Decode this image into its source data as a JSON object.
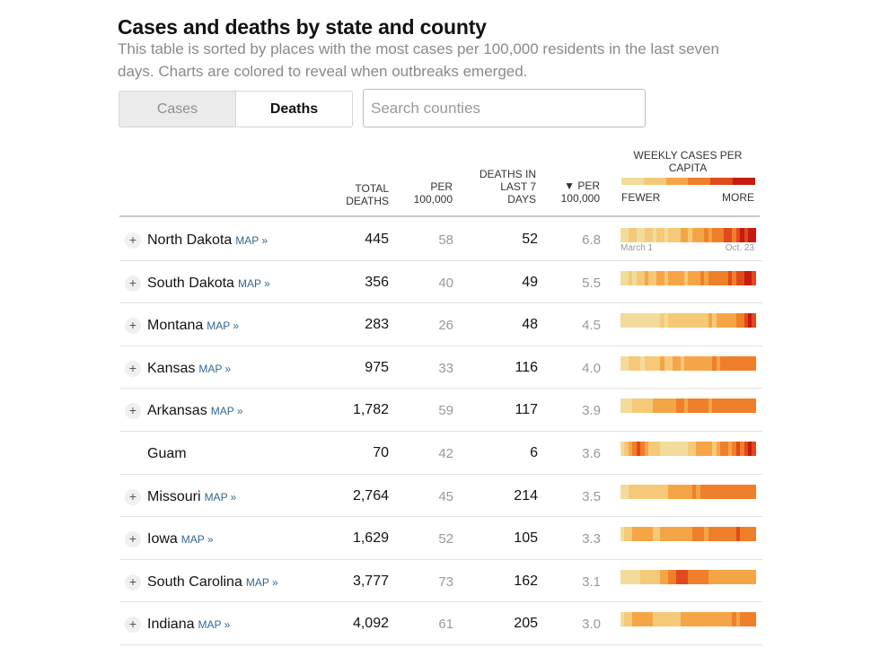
{
  "title": "Cases and deaths by state and county",
  "subtitle": "This table is sorted by places with the most cases per 100,000 residents in the last seven days. Charts are colored to reveal when outbreaks emerged.",
  "toggle": {
    "cases_label": "Cases",
    "deaths_label": "Deaths",
    "selected": "Deaths"
  },
  "search": {
    "placeholder": "Search counties"
  },
  "columns": {
    "total": "Total deaths",
    "per": "Per 100,000",
    "deaths7": "Deaths in last 7 days",
    "per7": "▼ Per 100,000",
    "weekly": "Weekly cases per capita"
  },
  "legend": {
    "fewer": "Fewer",
    "more": "More",
    "colors": [
      "#f2dc9a",
      "#f5c977",
      "#f6a546",
      "#f07f2a",
      "#e04a1c",
      "#c51b10"
    ]
  },
  "axis": {
    "start": "March 1",
    "end": "Oct. 23"
  },
  "map_label": "MAP »",
  "rows": [
    {
      "name": "North Dakota",
      "has_map": true,
      "total": "445",
      "per": "58",
      "d7": "52",
      "p7": "6.8",
      "levels": [
        0,
        0,
        1,
        1,
        0,
        0,
        1,
        1,
        0,
        1,
        1,
        0,
        1,
        1,
        1,
        2,
        2,
        1,
        2,
        2,
        2,
        3,
        2,
        3,
        3,
        3,
        4,
        4,
        3,
        4,
        5,
        4,
        5,
        5
      ]
    },
    {
      "name": "South Dakota",
      "has_map": true,
      "total": "356",
      "per": "40",
      "d7": "49",
      "p7": "5.5",
      "levels": [
        0,
        0,
        1,
        0,
        1,
        1,
        2,
        1,
        1,
        2,
        2,
        1,
        2,
        2,
        2,
        2,
        1,
        2,
        2,
        2,
        3,
        2,
        3,
        3,
        3,
        3,
        3,
        4,
        3,
        4,
        4,
        5,
        5,
        4
      ]
    },
    {
      "name": "Montana",
      "has_map": true,
      "total": "283",
      "per": "26",
      "d7": "48",
      "p7": "4.5",
      "levels": [
        0,
        0,
        0,
        0,
        0,
        0,
        0,
        0,
        0,
        0,
        1,
        0,
        1,
        1,
        1,
        1,
        1,
        1,
        1,
        1,
        1,
        1,
        2,
        1,
        2,
        2,
        2,
        2,
        2,
        3,
        3,
        4,
        5,
        4
      ]
    },
    {
      "name": "Kansas",
      "has_map": true,
      "total": "975",
      "per": "33",
      "d7": "116",
      "p7": "4.0",
      "levels": [
        0,
        0,
        1,
        1,
        1,
        0,
        1,
        1,
        1,
        1,
        2,
        1,
        1,
        2,
        2,
        1,
        2,
        2,
        2,
        2,
        2,
        2,
        2,
        3,
        2,
        3,
        3,
        3,
        3,
        3,
        3,
        3,
        3,
        3
      ]
    },
    {
      "name": "Arkansas",
      "has_map": true,
      "total": "1,782",
      "per": "59",
      "d7": "117",
      "p7": "3.9",
      "levels": [
        0,
        0,
        0,
        1,
        1,
        1,
        1,
        1,
        2,
        2,
        2,
        2,
        2,
        2,
        3,
        3,
        2,
        3,
        3,
        3,
        3,
        3,
        2,
        3,
        3,
        3,
        3,
        3,
        3,
        3,
        3,
        3,
        3,
        3
      ]
    },
    {
      "name": "Guam",
      "has_map": false,
      "total": "70",
      "per": "42",
      "d7": "6",
      "p7": "3.6",
      "levels": [
        0,
        1,
        2,
        3,
        4,
        3,
        2,
        1,
        1,
        1,
        0,
        0,
        0,
        0,
        0,
        0,
        0,
        1,
        1,
        2,
        2,
        2,
        2,
        1,
        2,
        3,
        3,
        2,
        3,
        4,
        3,
        4,
        5,
        4
      ]
    },
    {
      "name": "Missouri",
      "has_map": true,
      "total": "2,764",
      "per": "45",
      "d7": "214",
      "p7": "3.5",
      "levels": [
        0,
        0,
        1,
        1,
        1,
        1,
        1,
        1,
        1,
        1,
        1,
        1,
        2,
        2,
        2,
        2,
        2,
        2,
        3,
        2,
        3,
        3,
        3,
        3,
        3,
        3,
        3,
        3,
        3,
        3,
        3,
        3,
        3,
        3
      ]
    },
    {
      "name": "Iowa",
      "has_map": true,
      "total": "1,629",
      "per": "52",
      "d7": "105",
      "p7": "3.3",
      "levels": [
        0,
        1,
        1,
        2,
        2,
        2,
        2,
        2,
        1,
        1,
        2,
        2,
        2,
        2,
        2,
        2,
        2,
        2,
        3,
        3,
        3,
        2,
        3,
        3,
        3,
        3,
        3,
        3,
        3,
        4,
        3,
        3,
        3,
        3
      ]
    },
    {
      "name": "South Carolina",
      "has_map": true,
      "total": "3,777",
      "per": "73",
      "d7": "162",
      "p7": "3.1",
      "levels": [
        0,
        0,
        0,
        0,
        0,
        1,
        1,
        1,
        1,
        1,
        2,
        2,
        3,
        3,
        4,
        4,
        4,
        3,
        3,
        3,
        3,
        3,
        2,
        2,
        2,
        2,
        2,
        2,
        2,
        2,
        2,
        2,
        2,
        2
      ]
    },
    {
      "name": "Indiana",
      "has_map": true,
      "total": "4,092",
      "per": "61",
      "d7": "205",
      "p7": "3.0",
      "levels": [
        0,
        1,
        1,
        2,
        2,
        2,
        2,
        2,
        1,
        1,
        1,
        1,
        1,
        1,
        1,
        2,
        2,
        2,
        2,
        2,
        2,
        2,
        2,
        2,
        2,
        2,
        2,
        2,
        3,
        2,
        3,
        3,
        3,
        3
      ]
    }
  ]
}
